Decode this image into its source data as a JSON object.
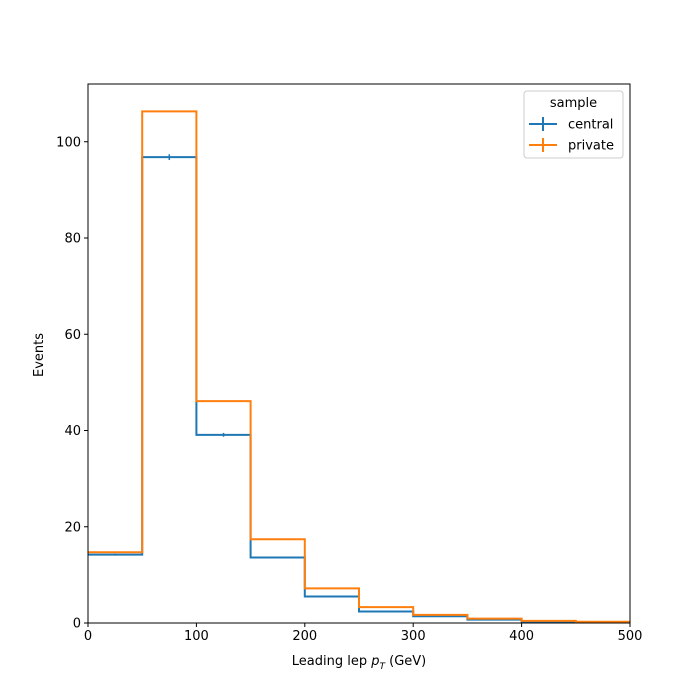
{
  "chart_data": {
    "type": "step",
    "title": "",
    "xlabel": {
      "prefix": "Leading lep ",
      "symbol": "p",
      "subscript": "T",
      "suffix": " (GeV)"
    },
    "ylabel": "Events",
    "xlim": [
      0,
      500
    ],
    "ylim": [
      0,
      112
    ],
    "xticks": [
      0,
      100,
      200,
      300,
      400,
      500
    ],
    "yticks": [
      0,
      20,
      40,
      60,
      80,
      100
    ],
    "grid": false,
    "bin_edges": [
      0,
      50,
      100,
      150,
      200,
      250,
      300,
      350,
      400,
      450,
      500
    ],
    "legend": {
      "title": "sample",
      "placement": "top-right"
    },
    "series": [
      {
        "name": "central",
        "color": "#1f77b4",
        "values": [
          14.2,
          96.8,
          39.1,
          13.6,
          5.5,
          2.4,
          1.4,
          0.7,
          0.3,
          0.15
        ],
        "errors": [
          0.2,
          0.6,
          0.4,
          0.2,
          0.1,
          0.1,
          0.05,
          0.05,
          0.03,
          0.02
        ]
      },
      {
        "name": "private",
        "color": "#ff7f0e",
        "values": [
          14.7,
          106.3,
          46.1,
          17.4,
          7.2,
          3.3,
          1.7,
          0.9,
          0.45,
          0.25
        ],
        "errors": [
          0.05,
          0.1,
          0.05,
          0.05,
          0.03,
          0.02,
          0.02,
          0.01,
          0.01,
          0.01
        ]
      }
    ]
  }
}
